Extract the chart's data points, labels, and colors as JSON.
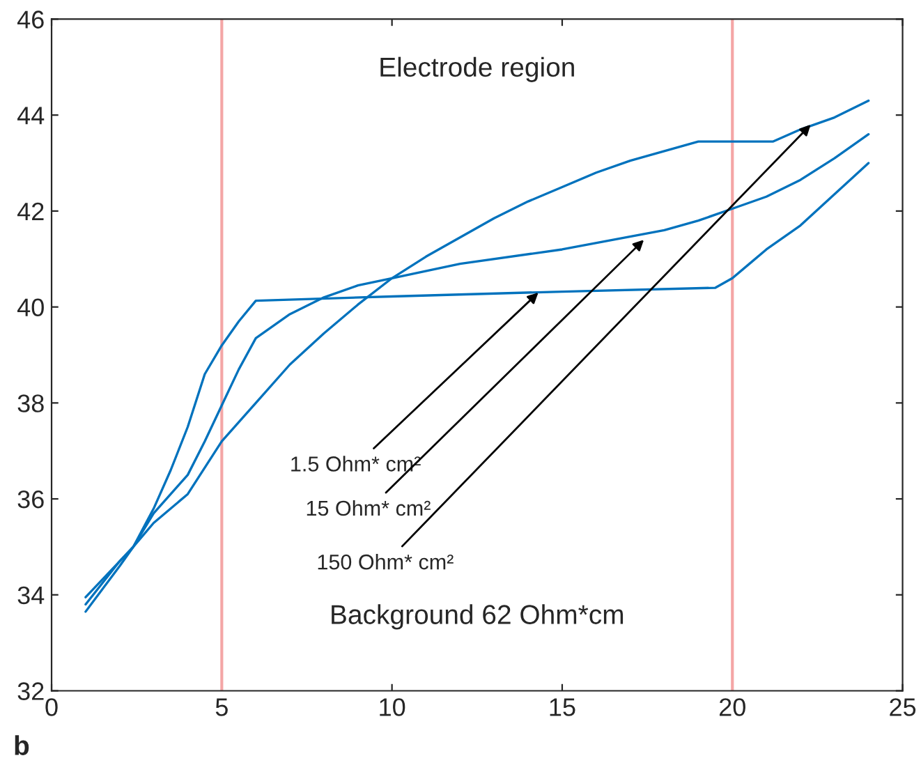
{
  "chart_data": {
    "type": "line",
    "xlim": [
      0,
      25
    ],
    "ylim": [
      32,
      46
    ],
    "xticks": [
      0,
      5,
      10,
      15,
      20,
      25
    ],
    "yticks": [
      32,
      34,
      36,
      38,
      40,
      42,
      44,
      46
    ],
    "grid": false,
    "legend": false,
    "line_style": "solid",
    "marker": "none",
    "series": [
      {
        "color": "#0072bd",
        "x": [
          1,
          2,
          2.4,
          3,
          3.5,
          4,
          4.5,
          5,
          5.5,
          6,
          10,
          15,
          19.5,
          20,
          20.5,
          21,
          22,
          23,
          24
        ],
        "values": [
          33.65,
          34.6,
          35,
          35.8,
          36.6,
          37.5,
          38.6,
          39.2,
          39.7,
          40.13,
          40.22,
          40.32,
          40.4,
          40.6,
          40.9,
          41.2,
          41.7,
          42.35,
          43.0
        ]
      },
      {
        "color": "#0072bd",
        "x": [
          1,
          2,
          2.4,
          3,
          4,
          4.5,
          5,
          5.5,
          6,
          7,
          8,
          9,
          10,
          12,
          15,
          18,
          19,
          20,
          21,
          22,
          23,
          24
        ],
        "values": [
          33.8,
          34.7,
          35,
          35.7,
          36.5,
          37.2,
          37.95,
          38.7,
          39.35,
          39.85,
          40.2,
          40.45,
          40.6,
          40.9,
          41.2,
          41.6,
          41.8,
          42.05,
          42.3,
          42.65,
          43.1,
          43.6
        ]
      },
      {
        "color": "#0072bd",
        "x": [
          1,
          2,
          2.4,
          3,
          4,
          5,
          6,
          7,
          8,
          9,
          10,
          11,
          12,
          13,
          14,
          15,
          16,
          17,
          18,
          19,
          21.2,
          22,
          23,
          24
        ],
        "values": [
          33.95,
          34.7,
          35,
          35.5,
          36.1,
          37.2,
          38.0,
          38.8,
          39.45,
          40.05,
          40.6,
          41.05,
          41.45,
          41.85,
          42.2,
          42.5,
          42.8,
          43.05,
          43.25,
          43.45,
          43.45,
          43.7,
          43.95,
          44.3
        ]
      }
    ],
    "ref_lines": [
      {
        "axis": "x",
        "value": 5,
        "color": "#f4a6a6"
      },
      {
        "axis": "x",
        "value": 20,
        "color": "#f4a6a6"
      }
    ],
    "annotations": [
      "Electrode region",
      "Background 62 Ohm*cm",
      {
        "text": "1.5 Ohm* cm²",
        "x": 14.3,
        "y": 40.3
      },
      {
        "text": "15 Ohm* cm²",
        "x": 17.4,
        "y": 41.4
      },
      {
        "text": "150 Ohm* cm²",
        "x": 22.3,
        "y": 43.8
      },
      "b"
    ]
  }
}
